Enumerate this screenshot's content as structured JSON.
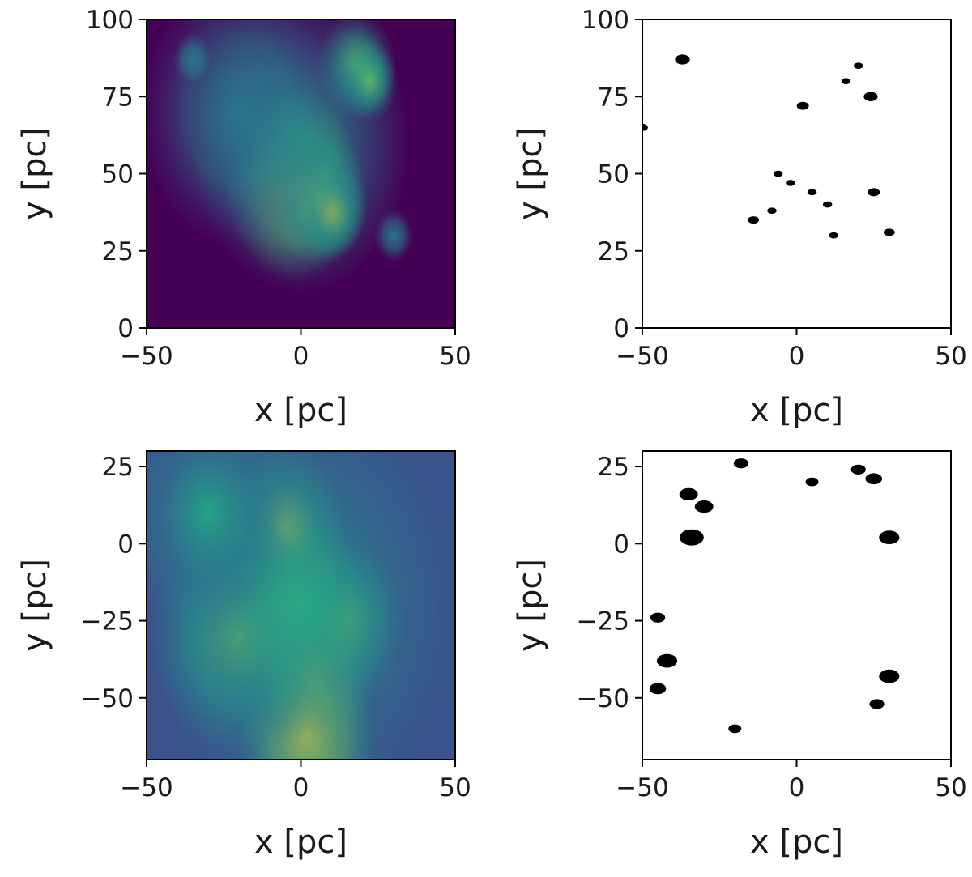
{
  "chart_data": [
    {
      "type": "heatmap",
      "colormap": "viridis",
      "description_of_field": "column density map",
      "xlabel": "x [pc]",
      "ylabel": "y [pc]",
      "xlim": [
        -50,
        50
      ],
      "ylim": [
        0,
        100
      ],
      "xticks": [
        -50,
        0,
        50
      ],
      "yticks": [
        0,
        25,
        50,
        75,
        100
      ],
      "xtick_labels": [
        "−50",
        "0",
        "50"
      ],
      "ytick_labels": [
        "0",
        "25",
        "50",
        "75",
        "100"
      ],
      "grid": false,
      "background_color": "#440154",
      "features": [
        {
          "x": -2,
          "y": 46,
          "r": 14,
          "level": 0.95
        },
        {
          "x": 6,
          "y": 42,
          "r": 10,
          "level": 0.85
        },
        {
          "x": 10,
          "y": 38,
          "r": 7,
          "level": 0.8
        },
        {
          "x": 18,
          "y": 85,
          "r": 8,
          "level": 0.6
        },
        {
          "x": 22,
          "y": 80,
          "r": 6,
          "level": 0.6
        },
        {
          "x": 0,
          "y": 60,
          "r": 22,
          "level": 0.45
        },
        {
          "x": -20,
          "y": 70,
          "r": 20,
          "level": 0.3
        },
        {
          "x": -35,
          "y": 87,
          "r": 4,
          "level": 0.35
        },
        {
          "x": 30,
          "y": 30,
          "r": 4,
          "level": 0.35
        }
      ]
    },
    {
      "type": "heatmap",
      "colormap": "binary",
      "description_of_field": "binary mask",
      "xlabel": "x [pc]",
      "ylabel": "y [pc]",
      "xlim": [
        -50,
        50
      ],
      "ylim": [
        0,
        100
      ],
      "xticks": [
        -50,
        0,
        50
      ],
      "yticks": [
        0,
        25,
        50,
        75,
        100
      ],
      "xtick_labels": [
        "−50",
        "0",
        "50"
      ],
      "ytick_labels": [
        "0",
        "25",
        "50",
        "75",
        "100"
      ],
      "grid": false,
      "background_color": "#ffffff",
      "features": [
        {
          "x": -37,
          "y": 87,
          "r": 1.6
        },
        {
          "x": -50,
          "y": 65,
          "r": 1.2
        },
        {
          "x": 2,
          "y": 72,
          "r": 1.3
        },
        {
          "x": 24,
          "y": 75,
          "r": 1.5
        },
        {
          "x": 25,
          "y": 44,
          "r": 1.3
        },
        {
          "x": 30,
          "y": 31,
          "r": 1.2
        },
        {
          "x": -14,
          "y": 35,
          "r": 1.2
        },
        {
          "x": -2,
          "y": 47,
          "r": 1.0
        },
        {
          "x": 5,
          "y": 44,
          "r": 1.0
        },
        {
          "x": 10,
          "y": 40,
          "r": 1.0
        },
        {
          "x": -6,
          "y": 50,
          "r": 1.0
        },
        {
          "x": 12,
          "y": 30,
          "r": 1.0
        },
        {
          "x": -8,
          "y": 38,
          "r": 1.0
        },
        {
          "x": 16,
          "y": 80,
          "r": 1.0
        },
        {
          "x": 20,
          "y": 85,
          "r": 1.0
        }
      ]
    },
    {
      "type": "heatmap",
      "colormap": "viridis",
      "description_of_field": "column density map",
      "xlabel": "x [pc]",
      "ylabel": "y [pc]",
      "xlim": [
        -50,
        50
      ],
      "ylim": [
        -70,
        30
      ],
      "xticks": [
        -50,
        0,
        50
      ],
      "yticks": [
        -50,
        -25,
        0,
        25
      ],
      "xtick_labels": [
        "−50",
        "0",
        "50"
      ],
      "ytick_labels": [
        "−50",
        "−25",
        "0",
        "25"
      ],
      "grid": false,
      "background_color": "#3b528b",
      "features": [
        {
          "x": -2,
          "y": -20,
          "r": 14,
          "level": 1.0
        },
        {
          "x": 5,
          "y": -40,
          "r": 12,
          "level": 0.9
        },
        {
          "x": -5,
          "y": 5,
          "r": 12,
          "level": 0.85
        },
        {
          "x": 2,
          "y": -62,
          "r": 14,
          "level": 0.9
        },
        {
          "x": 15,
          "y": -25,
          "r": 12,
          "level": 0.75
        },
        {
          "x": -20,
          "y": -30,
          "r": 18,
          "level": 0.6
        },
        {
          "x": 0,
          "y": -20,
          "r": 32,
          "level": 0.5
        },
        {
          "x": -30,
          "y": 10,
          "r": 18,
          "level": 0.4
        }
      ]
    },
    {
      "type": "heatmap",
      "colormap": "binary",
      "description_of_field": "binary mask",
      "xlabel": "x [pc]",
      "ylabel": "y [pc]",
      "xlim": [
        -50,
        50
      ],
      "ylim": [
        -70,
        30
      ],
      "xticks": [
        -50,
        0,
        50
      ],
      "yticks": [
        -50,
        -25,
        0,
        25
      ],
      "xtick_labels": [
        "−50",
        "0",
        "50"
      ],
      "ytick_labels": [
        "−50",
        "−25",
        "0",
        "25"
      ],
      "grid": false,
      "background_color": "#ffffff",
      "features": [
        {
          "x": -34,
          "y": 2,
          "r": 2.6
        },
        {
          "x": -30,
          "y": 12,
          "r": 2.0
        },
        {
          "x": -35,
          "y": 16,
          "r": 2.0
        },
        {
          "x": 30,
          "y": 2,
          "r": 2.2
        },
        {
          "x": 30,
          "y": -43,
          "r": 2.2
        },
        {
          "x": 25,
          "y": 21,
          "r": 1.8
        },
        {
          "x": 20,
          "y": 24,
          "r": 1.6
        },
        {
          "x": 5,
          "y": 20,
          "r": 1.4
        },
        {
          "x": -45,
          "y": -24,
          "r": 1.6
        },
        {
          "x": -42,
          "y": -38,
          "r": 2.2
        },
        {
          "x": -45,
          "y": -47,
          "r": 1.8
        },
        {
          "x": -18,
          "y": 26,
          "r": 1.6
        },
        {
          "x": 26,
          "y": -52,
          "r": 1.6
        },
        {
          "x": -20,
          "y": -60,
          "r": 1.4
        }
      ]
    }
  ]
}
